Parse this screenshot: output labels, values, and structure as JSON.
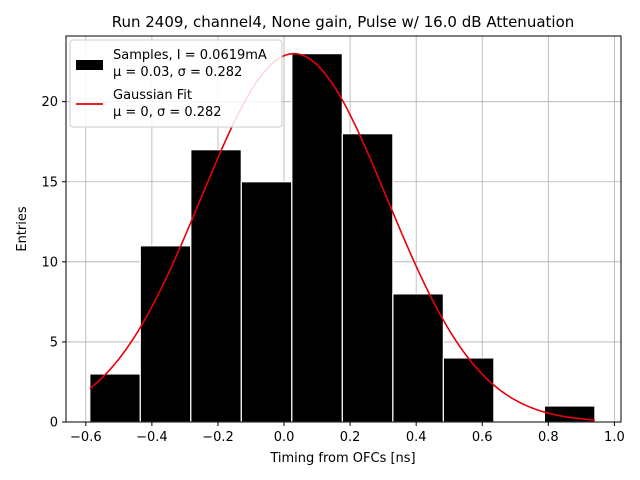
{
  "chart_data": {
    "type": "bar",
    "title": "Run 2409, channel4, None gain, Pulse w/ 16.0 dB Attenuation",
    "xlabel": "Timing from OFCs [ns]",
    "ylabel": "Entries",
    "xlim": [
      -0.66,
      1.02
    ],
    "ylim": [
      0,
      24.1
    ],
    "xticks": [
      -0.6,
      -0.4,
      -0.2,
      0.0,
      0.2,
      0.4,
      0.6,
      0.8,
      1.0
    ],
    "xtick_labels": [
      "−0.6",
      "−0.4",
      "−0.2",
      "0.0",
      "0.2",
      "0.4",
      "0.6",
      "0.8",
      "1.0"
    ],
    "yticks": [
      0,
      5,
      10,
      15,
      20
    ],
    "ytick_labels": [
      "0",
      "5",
      "10",
      "15",
      "20"
    ],
    "grid": true,
    "legend_position": "top-left",
    "histogram": {
      "name": "Samples, I = 0.0619mA",
      "name_line2": "μ = 0.03, σ = 0.282",
      "color": "#000000",
      "edge_color": "#ffffff",
      "bin_edges": [
        -0.588,
        -0.4351,
        -0.2822,
        -0.1293,
        0.0236,
        0.1765,
        0.3294,
        0.4823,
        0.6352,
        0.7881,
        0.941
      ],
      "counts": [
        3,
        11,
        17,
        15,
        23,
        18,
        8,
        4,
        0,
        1
      ]
    },
    "fit": {
      "name": "Gaussian Fit",
      "name_line2": "μ = 0, σ = 0.282",
      "color": "#e8000b",
      "amplitude": 23.0,
      "mean": 0.03,
      "sigma": 0.282,
      "x_range": [
        -0.588,
        0.941
      ]
    }
  }
}
